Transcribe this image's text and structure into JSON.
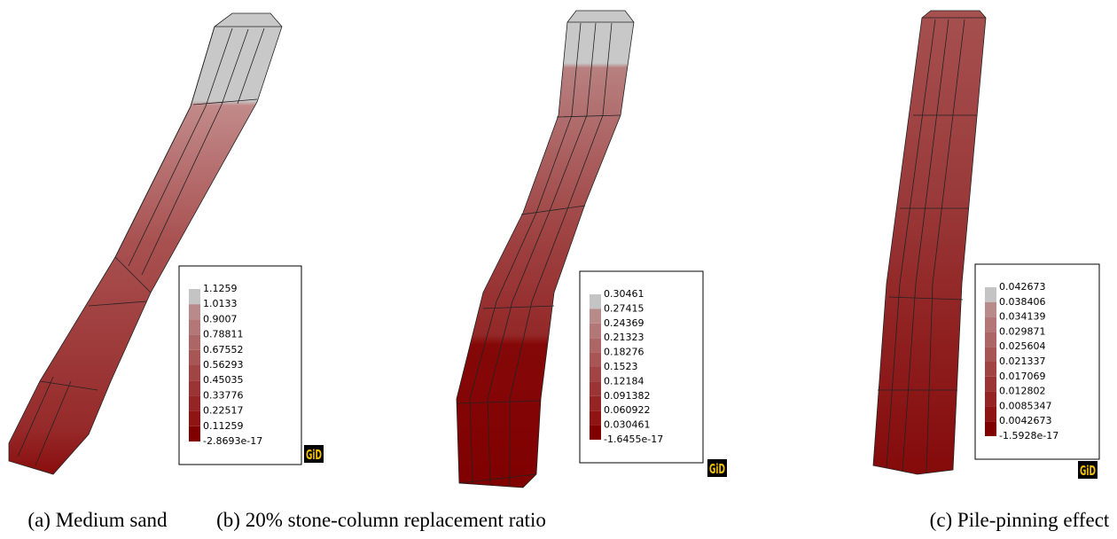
{
  "panels": [
    {
      "legend": [
        "1.1259",
        "1.0133",
        "0.9007",
        "0.78811",
        "0.67552",
        "0.56293",
        "0.45035",
        "0.33776",
        "0.22517",
        "0.11259",
        "-2.8693e-17"
      ],
      "logo": "GiD",
      "caption": "(a) Medium sand"
    },
    {
      "legend": [
        "0.30461",
        "0.27415",
        "0.24369",
        "0.21323",
        "0.18276",
        "0.1523",
        "0.12184",
        "0.091382",
        "0.060922",
        "0.030461",
        "-1.6455e-17"
      ],
      "logo": "GiD",
      "caption": "(b) 20% stone-column replacement ratio"
    },
    {
      "legend": [
        "0.042673",
        "0.038406",
        "0.034139",
        "0.029871",
        "0.025604",
        "0.021337",
        "0.017069",
        "0.012802",
        "0.0085347",
        "0.0042673",
        "-1.5928e-17"
      ],
      "logo": "GiD",
      "caption": "(c) Pile-pinning effect"
    }
  ]
}
